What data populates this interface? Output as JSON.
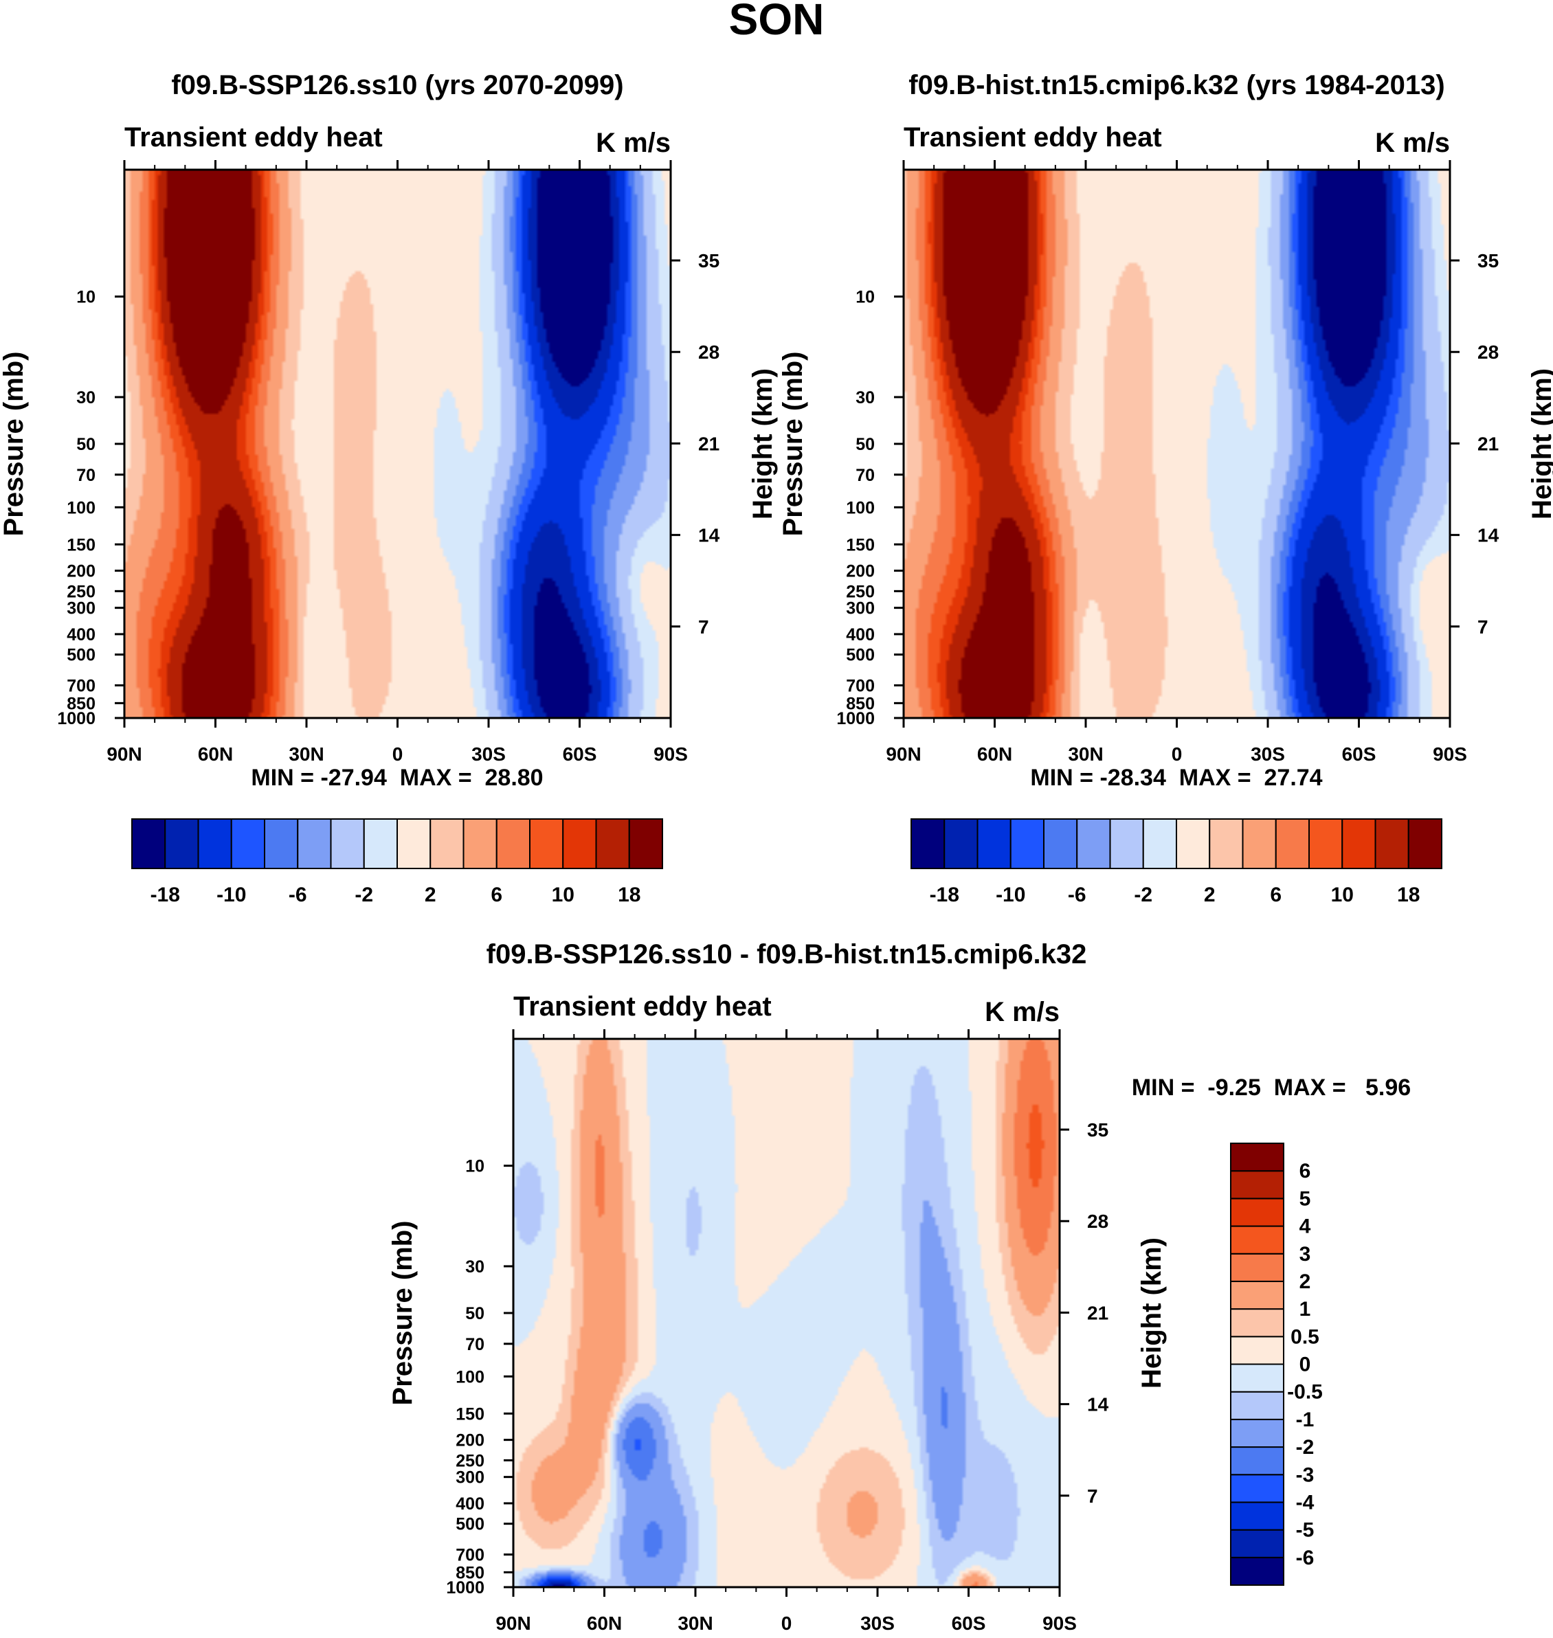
{
  "page_title": "SON",
  "chart_data": [
    {
      "type": "heatmap",
      "id": "ssp126",
      "title": "f09.B-SSP126.ss10 (yrs 2070-2099)",
      "left_string": "Transient eddy heat",
      "right_string": "K m/s",
      "ylabel": "Pressure (mb)",
      "ylabel_right": "Height (km)",
      "x_ticks": [
        "90N",
        "60N",
        "30N",
        "0",
        "30S",
        "60S",
        "90S"
      ],
      "x_range": [
        90,
        -90
      ],
      "pressure_ticks": [
        10,
        30,
        50,
        70,
        100,
        150,
        200,
        250,
        300,
        400,
        500,
        700,
        850,
        1000
      ],
      "pressure_range": [
        1000,
        2.5
      ],
      "height_ticks": [
        35,
        28,
        21,
        14,
        7
      ],
      "stats": "MIN = -27.94  MAX =  28.80",
      "min": -27.94,
      "max": 28.8,
      "levels": [
        -18,
        -14,
        -10,
        -8,
        -6,
        -4,
        -2,
        -1,
        1,
        2,
        4,
        6,
        8,
        10,
        14,
        18
      ],
      "colorbar_labels": [
        "-18",
        "-10",
        "-6",
        "-2",
        "2",
        "6",
        "10",
        "18"
      ],
      "colors": [
        "#00007d",
        "#0022b0",
        "#0033dd",
        "#1e55ff",
        "#4c7af2",
        "#7d9ef5",
        "#b4c8fa",
        "#d6e8fb",
        "#feeadb",
        "#fcc5aa",
        "#faa076",
        "#f77a4a",
        "#f4561e",
        "#e33606",
        "#b42004",
        "#7f0000"
      ],
      "features": [
        {
          "lat": 62,
          "p": 5,
          "amp": 34,
          "slat": 11,
          "slogp": 0.62
        },
        {
          "lat": 60,
          "p": 800,
          "amp": 20,
          "slat": 10,
          "slogp": 0.28
        },
        {
          "lat": 55,
          "p": 160,
          "amp": 13,
          "slat": 9,
          "slogp": 0.3
        },
        {
          "lat": 78,
          "p": 400,
          "amp": 5,
          "slat": 10,
          "slogp": 0.45
        },
        {
          "lat": 45,
          "p": 500,
          "amp": 5,
          "slat": 8,
          "slogp": 0.4
        },
        {
          "lat": -58,
          "p": 5,
          "amp": -34,
          "slat": 11,
          "slogp": 0.62
        },
        {
          "lat": -57,
          "p": 800,
          "amp": -20,
          "slat": 10,
          "slogp": 0.28
        },
        {
          "lat": -50,
          "p": 200,
          "amp": -13,
          "slat": 10,
          "slogp": 0.35
        },
        {
          "lat": -42,
          "p": 450,
          "amp": -5,
          "slat": 8,
          "slogp": 0.4
        },
        {
          "lat": -78,
          "p": 80,
          "amp": -4,
          "slat": 10,
          "slogp": 0.6
        },
        {
          "lat": 10,
          "p": 30,
          "amp": 1.4,
          "slat": 14,
          "slogp": 0.9
        },
        {
          "lat": 12,
          "p": 500,
          "amp": 1.4,
          "slat": 12,
          "slogp": 0.35
        },
        {
          "lat": -12,
          "p": 60,
          "amp": -1.4,
          "slat": 12,
          "slogp": 0.9
        },
        {
          "lat": 25,
          "p": 550,
          "amp": -1.6,
          "slat": 7,
          "slogp": 0.25
        },
        {
          "lat": -80,
          "p": 200,
          "amp": 2.5,
          "slat": 6,
          "slogp": 0.25
        }
      ]
    },
    {
      "type": "heatmap",
      "id": "hist",
      "title": "f09.B-hist.tn15.cmip6.k32 (yrs 1984-2013)",
      "left_string": "Transient eddy heat",
      "right_string": "K m/s",
      "ylabel": "Pressure (mb)",
      "ylabel_right": "Height (km)",
      "x_ticks": [
        "90N",
        "60N",
        "30N",
        "0",
        "30S",
        "60S",
        "90S"
      ],
      "x_range": [
        90,
        -90
      ],
      "pressure_ticks": [
        10,
        30,
        50,
        70,
        100,
        150,
        200,
        250,
        300,
        400,
        500,
        700,
        850,
        1000
      ],
      "pressure_range": [
        1000,
        2.5
      ],
      "height_ticks": [
        35,
        28,
        21,
        14,
        7
      ],
      "stats": "MIN = -28.34  MAX =  27.74",
      "min": -28.34,
      "max": 27.74,
      "levels": [
        -18,
        -14,
        -10,
        -8,
        -6,
        -4,
        -2,
        -1,
        1,
        2,
        4,
        6,
        8,
        10,
        14,
        18
      ],
      "colorbar_labels": [
        "-18",
        "-10",
        "-6",
        "-2",
        "2",
        "6",
        "10",
        "18"
      ],
      "colors": [
        "#00007d",
        "#0022b0",
        "#0033dd",
        "#1e55ff",
        "#4c7af2",
        "#7d9ef5",
        "#b4c8fa",
        "#d6e8fb",
        "#feeadb",
        "#fcc5aa",
        "#faa076",
        "#f77a4a",
        "#f4561e",
        "#e33606",
        "#b42004",
        "#7f0000"
      ],
      "features": [
        {
          "lat": 63,
          "p": 5,
          "amp": 33,
          "slat": 11,
          "slogp": 0.64
        },
        {
          "lat": 60,
          "p": 800,
          "amp": 20,
          "slat": 10,
          "slogp": 0.28
        },
        {
          "lat": 55,
          "p": 180,
          "amp": 13,
          "slat": 9,
          "slogp": 0.3
        },
        {
          "lat": 78,
          "p": 400,
          "amp": 5,
          "slat": 10,
          "slogp": 0.45
        },
        {
          "lat": 45,
          "p": 500,
          "amp": 5,
          "slat": 8,
          "slogp": 0.4
        },
        {
          "lat": -57,
          "p": 5,
          "amp": -33,
          "slat": 11,
          "slogp": 0.64
        },
        {
          "lat": -57,
          "p": 800,
          "amp": -20,
          "slat": 10,
          "slogp": 0.28
        },
        {
          "lat": -50,
          "p": 200,
          "amp": -13,
          "slat": 10,
          "slogp": 0.35
        },
        {
          "lat": -42,
          "p": 450,
          "amp": -5,
          "slat": 8,
          "slogp": 0.4
        },
        {
          "lat": -78,
          "p": 80,
          "amp": -4,
          "slat": 10,
          "slogp": 0.6
        },
        {
          "lat": 12,
          "p": 30,
          "amp": 1.4,
          "slat": 14,
          "slogp": 0.9
        },
        {
          "lat": 15,
          "p": 450,
          "amp": 1.4,
          "slat": 12,
          "slogp": 0.4
        },
        {
          "lat": -12,
          "p": 60,
          "amp": -1.4,
          "slat": 12,
          "slogp": 0.9
        },
        {
          "lat": 32,
          "p": 550,
          "amp": -1.6,
          "slat": 7,
          "slogp": 0.25
        },
        {
          "lat": -82,
          "p": 250,
          "amp": 2.5,
          "slat": 6,
          "slogp": 0.25
        }
      ]
    },
    {
      "type": "heatmap",
      "id": "diff",
      "title": "f09.B-SSP126.ss10 - f09.B-hist.tn15.cmip6.k32",
      "left_string": "Transient eddy heat",
      "right_string": "K m/s",
      "ylabel": "Pressure (mb)",
      "ylabel_right": "Height (km)",
      "x_ticks": [
        "90N",
        "60N",
        "30N",
        "0",
        "30S",
        "60S",
        "90S"
      ],
      "x_range": [
        90,
        -90
      ],
      "pressure_ticks": [
        10,
        30,
        50,
        70,
        100,
        150,
        200,
        250,
        300,
        400,
        500,
        700,
        850,
        1000
      ],
      "pressure_range": [
        1000,
        2.5
      ],
      "height_ticks": [
        35,
        28,
        21,
        14,
        7
      ],
      "stats": "MIN =  -9.25  MAX =   5.96",
      "min": -9.25,
      "max": 5.96,
      "levels": [
        -6,
        -5,
        -4,
        -3,
        -2,
        -1,
        -0.5,
        0,
        0.5,
        1,
        2,
        3,
        4,
        5,
        6
      ],
      "colorbar_labels": [
        "-6",
        "-5",
        "-4",
        "-3",
        "-2",
        "-1",
        "-0.5",
        "0",
        "0.5",
        "1",
        "2",
        "3",
        "4",
        "5",
        "6"
      ],
      "colors": [
        "#00007d",
        "#0022b0",
        "#0033dd",
        "#1e55ff",
        "#4c7af2",
        "#7d9ef5",
        "#b4c8fa",
        "#d6e8fb",
        "#feeadb",
        "#fcc5aa",
        "#faa076",
        "#f77a4a",
        "#f4561e",
        "#e33606",
        "#b42004",
        "#7f0000"
      ],
      "features": [
        {
          "lat": -82,
          "p": 8,
          "amp": 3.2,
          "slat": 7,
          "slogp": 0.55
        },
        {
          "lat": 62,
          "p": 8,
          "amp": 1.6,
          "slat": 5,
          "slogp": 0.5
        },
        {
          "lat": 58,
          "p": 60,
          "amp": 1.1,
          "slat": 8,
          "slogp": 0.7
        },
        {
          "lat": 64,
          "p": 150,
          "amp": 1.2,
          "slat": 6,
          "slogp": 0.25
        },
        {
          "lat": 78,
          "p": 350,
          "amp": 1.3,
          "slat": 8,
          "slogp": 0.2
        },
        {
          "lat": 15,
          "p": 40,
          "amp": 0.7,
          "slat": 10,
          "slogp": 0.9
        },
        {
          "lat": -25,
          "p": 450,
          "amp": 1.1,
          "slat": 12,
          "slogp": 0.25
        },
        {
          "lat": -62,
          "p": 980,
          "amp": 2.5,
          "slat": 4,
          "slogp": 0.05
        },
        {
          "lat": 50,
          "p": 200,
          "amp": -3.2,
          "slat": 6,
          "slogp": 0.14
        },
        {
          "lat": 45,
          "p": 600,
          "amp": -2.2,
          "slat": 10,
          "slogp": 0.25
        },
        {
          "lat": 75,
          "p": 990,
          "amp": -6.5,
          "slat": 6,
          "slogp": 0.04
        },
        {
          "lat": -52,
          "p": 150,
          "amp": -1.8,
          "slat": 5,
          "slogp": 0.5
        },
        {
          "lat": -45,
          "p": 15,
          "amp": -0.9,
          "slat": 6,
          "slogp": 0.6
        },
        {
          "lat": 85,
          "p": 15,
          "amp": -0.8,
          "slat": 5,
          "slogp": 0.2
        },
        {
          "lat": 25,
          "p": 20,
          "amp": -0.8,
          "slat": 12,
          "slogp": 0.6
        },
        {
          "lat": 5,
          "p": 100,
          "amp": -0.7,
          "slat": 10,
          "slogp": 0.3
        },
        {
          "lat": -70,
          "p": 400,
          "amp": -0.6,
          "slat": 12,
          "slogp": 0.5
        }
      ]
    }
  ]
}
